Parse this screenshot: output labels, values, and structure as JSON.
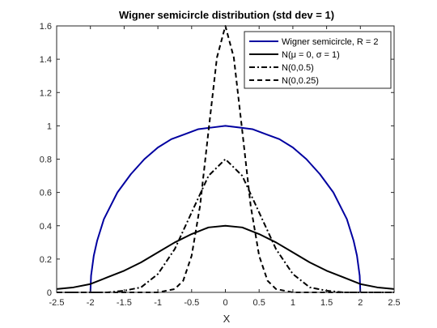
{
  "chart_data": {
    "type": "line",
    "title": "Wigner semicircle distribution (std dev = 1)",
    "xlabel": "X",
    "ylabel": "",
    "xlim": [
      -2.5,
      2.5
    ],
    "ylim": [
      0,
      1.6
    ],
    "xticks": [
      "-2.5",
      "-2",
      "-1.5",
      "-1",
      "-0.5",
      "0",
      "0.5",
      "1",
      "1.5",
      "2",
      "2.5"
    ],
    "yticks": [
      "0",
      "0.2",
      "0.4",
      "0.6",
      "0.8",
      "1",
      "1.2",
      "1.4",
      "1.6"
    ],
    "grid": false,
    "legend_position": "top-right",
    "x": [
      -2.5,
      -2.25,
      -2,
      -1.75,
      -1.5,
      -1.25,
      -1,
      -0.75,
      -0.5,
      -0.25,
      0,
      0.25,
      0.5,
      0.75,
      1,
      1.25,
      1.5,
      1.75,
      2,
      2.25,
      2.5
    ],
    "series": [
      {
        "name": "Wigner semicircle, R = 2",
        "color": "#0000a0",
        "dash": "solid",
        "x": [
          -2,
          -1.99,
          -1.95,
          -1.9,
          -1.8,
          -1.6,
          -1.4,
          -1.2,
          -1,
          -0.8,
          -0.6,
          -0.4,
          -0.2,
          0,
          0.2,
          0.4,
          0.6,
          0.8,
          1,
          1.2,
          1.4,
          1.6,
          1.8,
          1.9,
          1.95,
          1.99,
          2
        ],
        "values": [
          0,
          0.1,
          0.22,
          0.31,
          0.44,
          0.6,
          0.71,
          0.8,
          0.87,
          0.92,
          0.95,
          0.98,
          0.99,
          1,
          0.99,
          0.98,
          0.95,
          0.92,
          0.87,
          0.8,
          0.71,
          0.6,
          0.44,
          0.31,
          0.22,
          0.1,
          0
        ]
      },
      {
        "name": "N(μ = 0,  σ = 1)",
        "color": "#000000",
        "dash": "solid",
        "values": [
          0.02,
          0.03,
          0.05,
          0.09,
          0.13,
          0.18,
          0.24,
          0.3,
          0.35,
          0.39,
          0.4,
          0.39,
          0.35,
          0.3,
          0.24,
          0.18,
          0.13,
          0.09,
          0.05,
          0.03,
          0.02
        ]
      },
      {
        "name": "N(0,0.5)",
        "color": "#000000",
        "dash": "dashdot",
        "values": [
          0,
          0,
          0,
          0,
          0.01,
          0.03,
          0.11,
          0.26,
          0.48,
          0.7,
          0.8,
          0.7,
          0.48,
          0.26,
          0.11,
          0.03,
          0.01,
          0,
          0,
          0,
          0
        ]
      },
      {
        "name": "N(0,0.25)",
        "color": "#000000",
        "dash": "dash",
        "x": [
          -2.5,
          -1.5,
          -1,
          -0.875,
          -0.75,
          -0.625,
          -0.5,
          -0.375,
          -0.25,
          -0.125,
          0,
          0.125,
          0.25,
          0.375,
          0.5,
          0.625,
          0.75,
          0.875,
          1,
          1.5,
          2.5
        ],
        "values": [
          0,
          0,
          0,
          0.01,
          0.02,
          0.07,
          0.22,
          0.52,
          0.97,
          1.41,
          1.6,
          1.41,
          0.97,
          0.52,
          0.22,
          0.07,
          0.02,
          0.01,
          0,
          0,
          0
        ]
      }
    ]
  }
}
